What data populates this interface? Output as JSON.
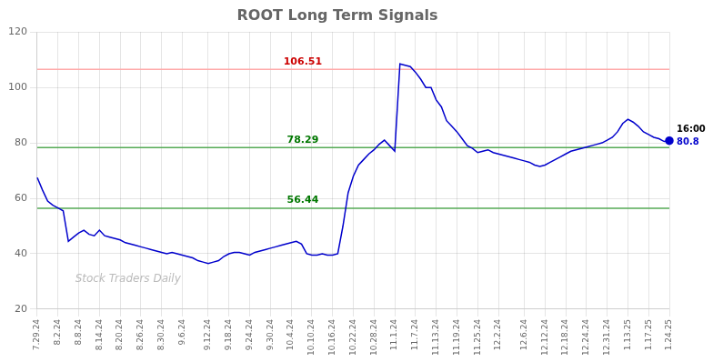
{
  "chart_data": {
    "type": "line",
    "title": "ROOT Long Term Signals",
    "categories": [
      "7.29.24",
      null,
      null,
      null,
      "8.2.24",
      null,
      null,
      null,
      "8.8.24",
      null,
      null,
      null,
      "8.14.24",
      null,
      null,
      null,
      "8.20.24",
      null,
      null,
      null,
      "8.26.24",
      null,
      null,
      null,
      "8.30.24",
      null,
      null,
      null,
      "9.6.24",
      null,
      null,
      null,
      null,
      "9.12.24",
      null,
      null,
      null,
      "9.18.24",
      null,
      null,
      null,
      "9.24.24",
      null,
      null,
      null,
      "9.30.24",
      null,
      null,
      null,
      "10.4.24",
      null,
      null,
      null,
      "10.10.24",
      null,
      null,
      null,
      "10.16.24",
      null,
      null,
      null,
      "10.22.24",
      null,
      null,
      null,
      "10.28.24",
      null,
      null,
      null,
      "11.1.24",
      null,
      null,
      null,
      "11.7.24",
      null,
      null,
      null,
      "11.13.24",
      null,
      null,
      null,
      "11.19.24",
      null,
      null,
      null,
      "11.25.24",
      null,
      null,
      null,
      "12.2.24",
      null,
      null,
      null,
      null,
      "12.6.24",
      null,
      null,
      null,
      "12.12.24",
      null,
      null,
      null,
      "12.18.24",
      null,
      null,
      null,
      "12.24.24",
      null,
      null,
      null,
      "12.31.24",
      null,
      null,
      null,
      "1.13.25",
      null,
      null,
      null,
      "1.17.25",
      null,
      null,
      null,
      "1.24.25"
    ],
    "values": [
      67.5,
      63.0,
      59.0,
      57.5,
      56.5,
      55.5,
      44.5,
      46.0,
      47.5,
      48.5,
      47.0,
      46.5,
      48.5,
      46.5,
      46.0,
      45.5,
      45.0,
      44.0,
      43.5,
      43.0,
      42.5,
      42.0,
      41.5,
      41.0,
      40.5,
      40.0,
      40.5,
      40.0,
      39.5,
      39.0,
      38.5,
      37.5,
      37.0,
      36.5,
      37.0,
      37.5,
      39.0,
      40.0,
      40.5,
      40.5,
      40.0,
      39.5,
      40.5,
      41.0,
      41.5,
      42.0,
      42.5,
      43.0,
      43.5,
      44.0,
      44.5,
      43.5,
      40.0,
      39.5,
      39.5,
      40.0,
      39.5,
      39.5,
      40.0,
      50.0,
      62.0,
      68.0,
      72.0,
      74.0,
      76.0,
      77.5,
      79.5,
      81.0,
      79.0,
      77.0,
      108.5,
      108.0,
      107.5,
      105.5,
      103.0,
      100.0,
      100.0,
      95.5,
      93.0,
      88.0,
      86.0,
      84.0,
      81.5,
      79.0,
      78.0,
      76.5,
      77.0,
      77.5,
      76.5,
      76.0,
      75.5,
      75.0,
      74.5,
      74.0,
      73.5,
      73.0,
      72.0,
      71.5,
      72.0,
      73.0,
      74.0,
      75.0,
      76.0,
      77.0,
      77.5,
      78.0,
      78.5,
      79.0,
      79.5,
      80.0,
      81.0,
      82.0,
      84.0,
      87.0,
      88.5,
      87.5,
      86.0,
      84.0,
      83.0,
      82.0,
      81.5,
      80.5,
      80.8
    ],
    "color": "#0000cc",
    "ylim": [
      20,
      120
    ],
    "yticks": [
      20,
      40,
      60,
      80,
      100,
      120
    ],
    "grid": true,
    "annotations": [
      {
        "type": "hline",
        "value": 106.51,
        "label": "106.51",
        "color": "#ffaaaa",
        "text_color": "#cc0000"
      },
      {
        "type": "hline",
        "value": 78.29,
        "label": "78.29",
        "color": "#55aa55",
        "text_color": "#007700"
      },
      {
        "type": "hline",
        "value": 56.44,
        "label": "56.44",
        "color": "#55aa55",
        "text_color": "#007700"
      },
      {
        "type": "last_point",
        "text": "16:00",
        "color": "#000000"
      },
      {
        "type": "last_point",
        "text": "80.8",
        "color": "#0000cc"
      },
      {
        "type": "watermark",
        "text": "Stock Traders Daily",
        "color": "#bbbbbb"
      }
    ]
  }
}
